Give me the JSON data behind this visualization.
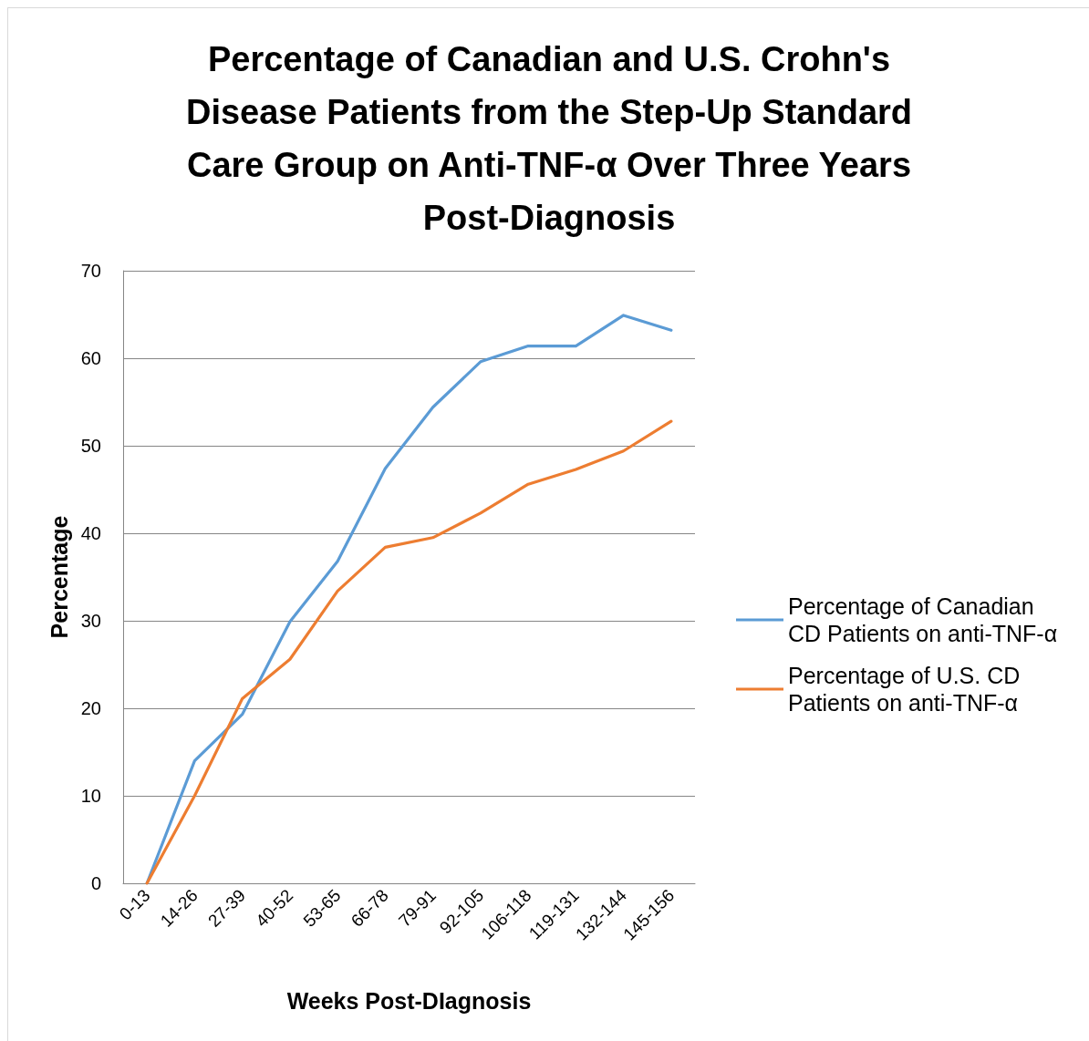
{
  "chart_data": {
    "type": "line",
    "title": "Percentage of Canadian and U.S. Crohn's Disease Patients from the Step-Up Standard Care Group on Anti-TNF-α Over Three Years Post-Diagnosis",
    "xlabel": "Weeks Post-DIagnosis",
    "ylabel": "Percentage",
    "categories": [
      "0-13",
      "14-26",
      "27-39",
      "40-52",
      "53-65",
      "66-78",
      "79-91",
      "92-105",
      "106-118",
      "119-131",
      "132-144",
      "145-156"
    ],
    "series": [
      {
        "name": "Percentage of Canadian CD Patients on anti-TNF-α",
        "color": "#5b9bd5",
        "values": [
          0,
          14.0,
          19.3,
          29.9,
          36.8,
          47.4,
          54.4,
          59.6,
          61.4,
          61.4,
          64.9,
          63.2
        ]
      },
      {
        "name": "Percentage of U.S. CD Patients on anti-TNF-α",
        "color": "#ed7d31",
        "values": [
          0,
          10.0,
          21.1,
          25.6,
          33.4,
          38.4,
          39.5,
          42.3,
          45.6,
          47.3,
          49.4,
          52.8
        ]
      }
    ],
    "ylim": [
      0,
      70
    ],
    "yticks": [
      0,
      10,
      20,
      30,
      40,
      50,
      60,
      70
    ],
    "grid": "y",
    "legend": "right",
    "marker": "none",
    "line_style": "solid"
  }
}
